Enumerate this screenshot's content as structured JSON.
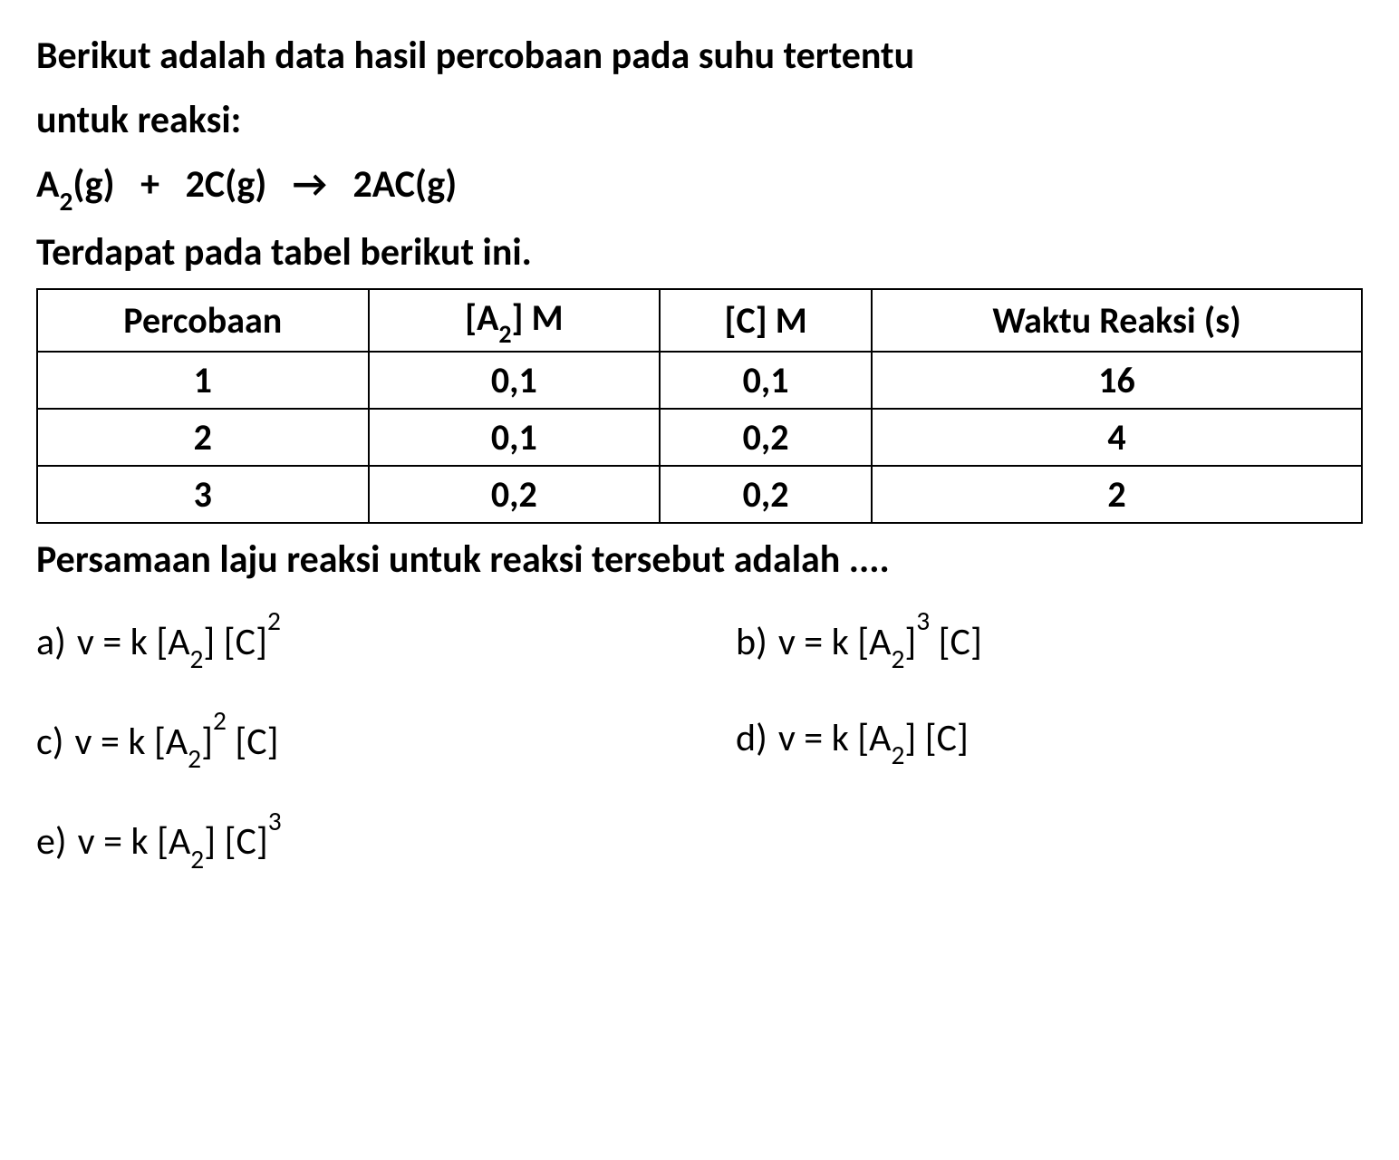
{
  "intro": {
    "line1": "Berikut adalah data hasil percobaan pada suhu tertentu",
    "line2": "untuk reaksi:"
  },
  "equation": {
    "reactant1": "A",
    "reactant1_sub": "2",
    "reactant1_state": "(g)",
    "plus": "+",
    "reactant2_coef": "2",
    "reactant2": "C(g)",
    "arrow": "→",
    "product_coef": "2",
    "product": "AC(g)"
  },
  "table_intro": "Terdapat pada tabel berikut ini.",
  "table": {
    "headers": {
      "col1": "Percobaan",
      "col2_prefix": "[A",
      "col2_sub": "2",
      "col2_suffix": "] M",
      "col3": "[C] M",
      "col4": "Waktu Reaksi (s)"
    },
    "rows": [
      {
        "percobaan": "1",
        "a2": "0,1",
        "c": "0,1",
        "waktu": "16"
      },
      {
        "percobaan": "2",
        "a2": "0,1",
        "c": "0,2",
        "waktu": "4"
      },
      {
        "percobaan": "3",
        "a2": "0,2",
        "c": "0,2",
        "waktu": "2"
      }
    ],
    "col_widths": [
      "25%",
      "22%",
      "16%",
      "37%"
    ]
  },
  "question": "Persamaan laju reaksi untuk reaksi tersebut adalah ....",
  "options": {
    "a": {
      "label": "a)",
      "prefix": "v = k [A",
      "sub1": "2",
      "mid": "] [C]",
      "sup": "2",
      "suffix": ""
    },
    "b": {
      "label": "b)",
      "prefix": "v = k [A",
      "sub1": "2",
      "mid": "]",
      "sup": "3",
      "suffix": " [C]"
    },
    "c": {
      "label": "c)",
      "prefix": "v = k [A",
      "sub1": "2",
      "mid": "]",
      "sup": "2",
      "suffix": " [C]"
    },
    "d": {
      "label": "d)",
      "prefix": "v = k [A",
      "sub1": "2",
      "mid": "] [C]",
      "sup": "",
      "suffix": ""
    },
    "e": {
      "label": "e)",
      "prefix": "v = k [A",
      "sub1": "2",
      "mid": "] [C]",
      "sup": "3",
      "suffix": ""
    }
  },
  "styling": {
    "background_color": "#ffffff",
    "text_color": "#000000",
    "border_color": "#000000",
    "font_family": "Calibri, Arial, sans-serif",
    "body_fontsize": 42,
    "table_fontsize": 40,
    "font_weight_body": "bold",
    "border_width": 2
  }
}
